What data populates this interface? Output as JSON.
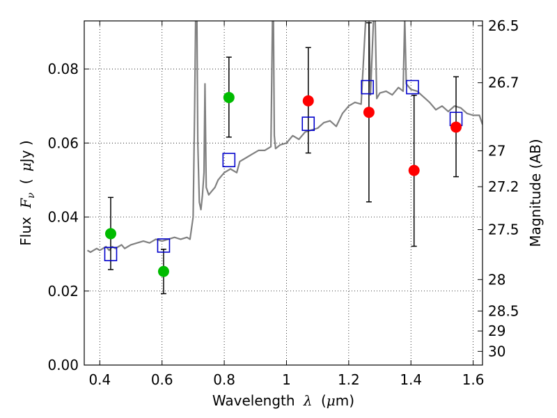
{
  "chart_data": {
    "type": "scatter",
    "title": "",
    "xlabel": "Wavelength",
    "xlabel_symbol": "λ",
    "xlabel_unit_open": "(",
    "xlabel_unit_mu": "μ",
    "xlabel_unit_rest": "m)",
    "ylabel_prefix": "Flux",
    "ylabel_symbol": "F",
    "ylabel_subscript": "ν",
    "ylabel_unit_open": "(",
    "ylabel_unit_mu": "μ",
    "ylabel_unit_rest": "Jy )",
    "y2label": "Magnitude (AB)",
    "xlim": [
      0.35,
      1.63
    ],
    "ylim": [
      0.0,
      0.093
    ],
    "grid": true,
    "xticks": [
      0.4,
      0.6,
      0.8,
      1.0,
      1.2,
      1.4,
      1.6
    ],
    "xtick_labels": [
      "0.4",
      "0.6",
      "0.8",
      "1",
      "1.2",
      "1.4",
      "1.6"
    ],
    "yticks": [
      0.0,
      0.02,
      0.04,
      0.06,
      0.08
    ],
    "ytick_labels": [
      "0.00",
      "0.02",
      "0.04",
      "0.06",
      "0.08"
    ],
    "y2ticks": [
      {
        "label": "26.5",
        "flux": 0.0917
      },
      {
        "label": "26.7",
        "flux": 0.0763
      },
      {
        "label": "27",
        "flux": 0.0579
      },
      {
        "label": "27.2",
        "flux": 0.0482
      },
      {
        "label": "27.5",
        "flux": 0.0366
      },
      {
        "label": "28",
        "flux": 0.0231
      },
      {
        "label": "28.5",
        "flux": 0.0146
      },
      {
        "label": "29",
        "flux": 0.0092
      },
      {
        "label": "30",
        "flux": 0.0037
      }
    ],
    "colors": {
      "spectrum": "#808080",
      "green": "#00bb00",
      "red": "#ff0000",
      "model": "#0000cc",
      "errorbar": "#000000",
      "grid": "#000000"
    },
    "series": [
      {
        "name": "model spectrum",
        "style": "line",
        "x": [
          0.36,
          0.37,
          0.38,
          0.39,
          0.4,
          0.41,
          0.42,
          0.43,
          0.44,
          0.45,
          0.46,
          0.47,
          0.48,
          0.49,
          0.5,
          0.52,
          0.54,
          0.56,
          0.58,
          0.6,
          0.62,
          0.64,
          0.66,
          0.68,
          0.69,
          0.7,
          0.705,
          0.708,
          0.712,
          0.715,
          0.72,
          0.725,
          0.73,
          0.735,
          0.738,
          0.742,
          0.75,
          0.76,
          0.77,
          0.78,
          0.79,
          0.8,
          0.82,
          0.84,
          0.85,
          0.87,
          0.89,
          0.91,
          0.93,
          0.95,
          0.955,
          0.958,
          0.961,
          0.965,
          0.98,
          1.0,
          1.02,
          1.04,
          1.06,
          1.08,
          1.1,
          1.12,
          1.14,
          1.16,
          1.18,
          1.2,
          1.22,
          1.24,
          1.255,
          1.265,
          1.27,
          1.28,
          1.285,
          1.29,
          1.3,
          1.32,
          1.34,
          1.36,
          1.375,
          1.38,
          1.385,
          1.4,
          1.42,
          1.44,
          1.46,
          1.48,
          1.5,
          1.52,
          1.54,
          1.56,
          1.58,
          1.6,
          1.62,
          1.63
        ],
        "y": [
          0.031,
          0.0305,
          0.031,
          0.0315,
          0.031,
          0.0315,
          0.032,
          0.031,
          0.032,
          0.0315,
          0.032,
          0.0325,
          0.0315,
          0.032,
          0.0325,
          0.033,
          0.0335,
          0.033,
          0.034,
          0.0335,
          0.034,
          0.0345,
          0.034,
          0.0345,
          0.034,
          0.04,
          0.07,
          0.094,
          0.094,
          0.06,
          0.044,
          0.042,
          0.046,
          0.052,
          0.076,
          0.048,
          0.046,
          0.047,
          0.048,
          0.05,
          0.051,
          0.052,
          0.053,
          0.052,
          0.055,
          0.056,
          0.057,
          0.058,
          0.058,
          0.059,
          0.094,
          0.094,
          0.062,
          0.0585,
          0.0595,
          0.06,
          0.062,
          0.061,
          0.063,
          0.0635,
          0.064,
          0.0655,
          0.066,
          0.0645,
          0.068,
          0.07,
          0.071,
          0.0705,
          0.094,
          0.094,
          0.073,
          0.094,
          0.094,
          0.072,
          0.0735,
          0.074,
          0.073,
          0.075,
          0.074,
          0.094,
          0.076,
          0.0745,
          0.074,
          0.0725,
          0.071,
          0.069,
          0.07,
          0.0685,
          0.07,
          0.0695,
          0.068,
          0.0675,
          0.0675,
          0.065
        ]
      },
      {
        "name": "green points",
        "style": "marker-circle",
        "x": [
          0.435,
          0.605,
          0.815
        ],
        "y": [
          0.0355,
          0.0253,
          0.0723
        ],
        "yerr_low": [
          0.0258,
          0.0193,
          0.0616
        ],
        "yerr_high": [
          0.0453,
          0.0313,
          0.0832
        ]
      },
      {
        "name": "red points",
        "style": "marker-circle",
        "x": [
          1.07,
          1.265,
          1.41,
          1.545
        ],
        "y": [
          0.0714,
          0.0683,
          0.0526,
          0.0643
        ],
        "yerr_low": [
          0.0573,
          0.0441,
          0.0321,
          0.0509
        ],
        "yerr_high": [
          0.0858,
          0.0925,
          0.0729,
          0.0779
        ]
      },
      {
        "name": "model photometry",
        "style": "marker-square",
        "x": [
          0.435,
          0.605,
          0.815,
          1.07,
          1.26,
          1.405,
          1.545
        ],
        "y": [
          0.03,
          0.0323,
          0.0554,
          0.0652,
          0.0751,
          0.0751,
          0.0665
        ]
      }
    ]
  }
}
